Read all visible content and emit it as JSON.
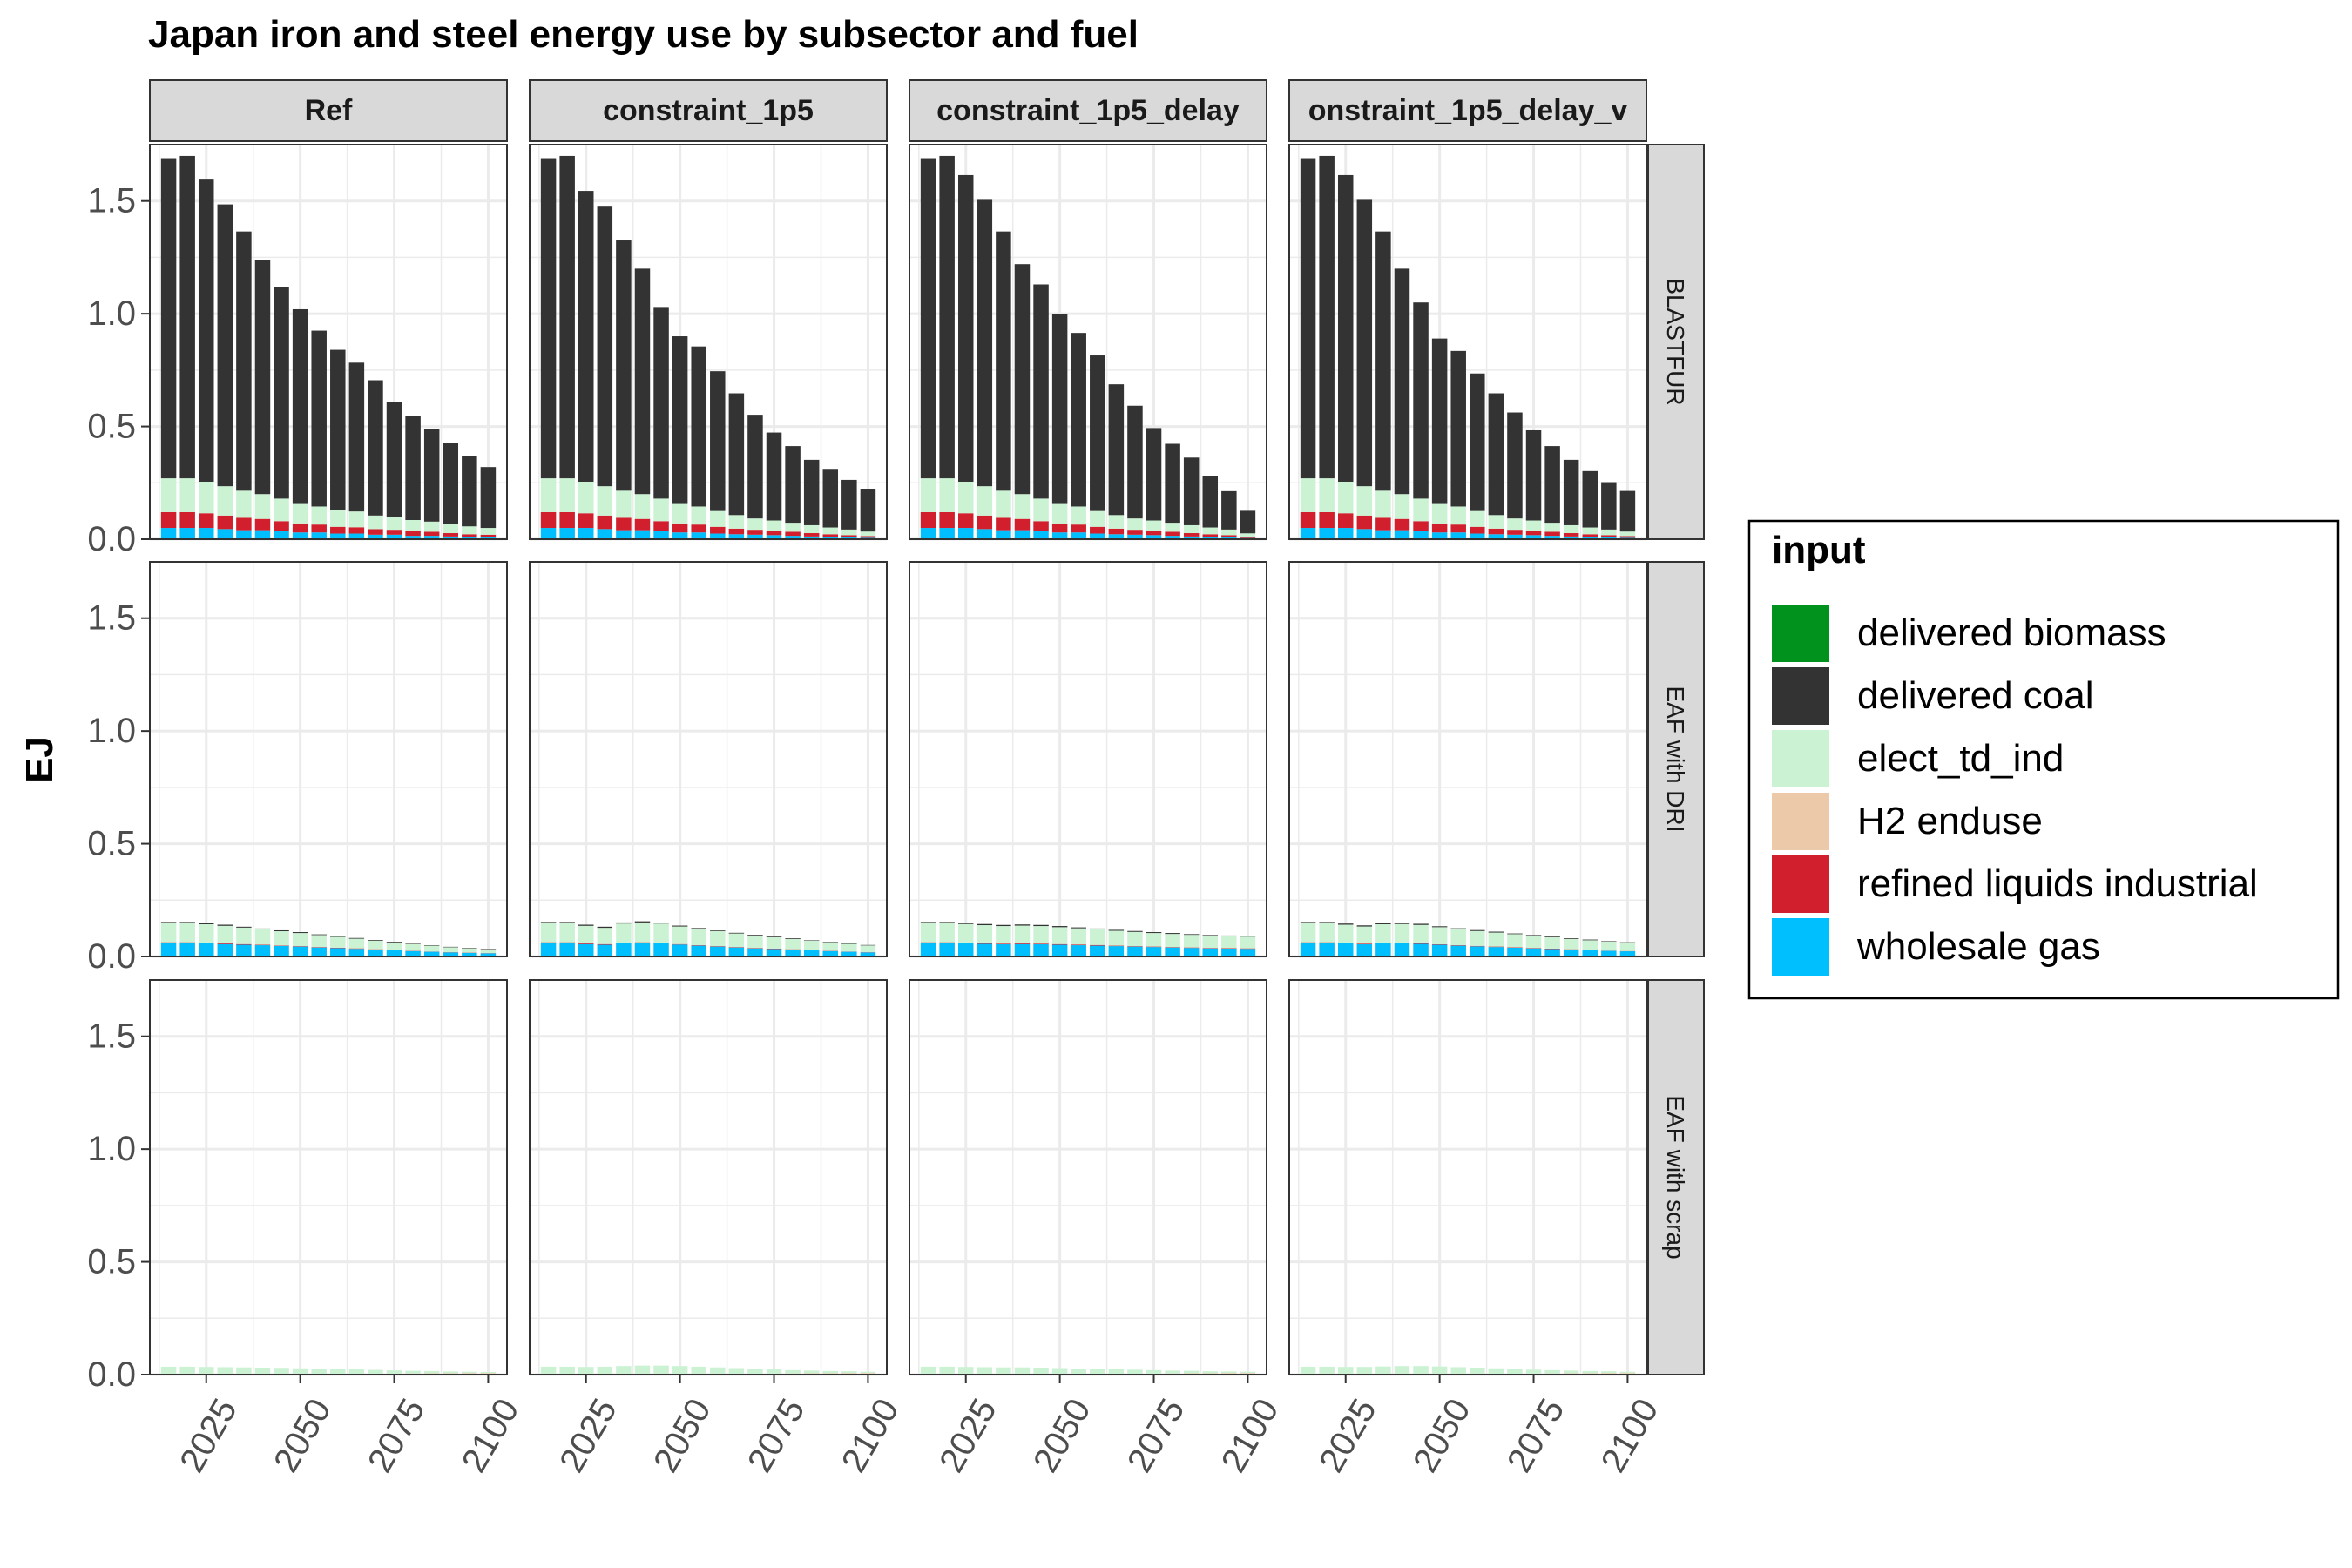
{
  "chart_data": {
    "type": "bar",
    "stacked": true,
    "title": "Japan iron and steel energy use by subsector and fuel",
    "ylabel": "EJ",
    "xlabel": "",
    "ylim": [
      0,
      1.75
    ],
    "y_ticks": [
      "0.0",
      "0.5",
      "1.0",
      "1.5"
    ],
    "x_ticks": [
      "2025",
      "2050",
      "2075",
      "2100"
    ],
    "grid": true,
    "legend_title": "input",
    "legend_position": "right",
    "x": [
      2015,
      2020,
      2025,
      2030,
      2035,
      2040,
      2045,
      2050,
      2055,
      2060,
      2065,
      2070,
      2075,
      2080,
      2085,
      2090,
      2095,
      2100
    ],
    "facet_columns": [
      "Ref",
      "constraint_1p5",
      "constraint_1p5_delay",
      "onstraint_1p5_delay_v"
    ],
    "facet_rows": [
      "BLASTFUR",
      "EAF with DRI",
      "EAF with scrap"
    ],
    "inputs": [
      {
        "name": "delivered biomass",
        "color": "#00921C"
      },
      {
        "name": "delivered coal",
        "color": "#333333"
      },
      {
        "name": "elect_td_ind",
        "color": "#CCF2D4"
      },
      {
        "name": "H2 enduse",
        "color": "#ECC9A9"
      },
      {
        "name": "refined liquids industrial",
        "color": "#D11F2D"
      },
      {
        "name": "wholesale gas",
        "color": "#00BFFF"
      }
    ],
    "stack_order": [
      "wholesale gas",
      "refined liquids industrial",
      "H2 enduse",
      "elect_td_ind",
      "delivered coal",
      "delivered biomass"
    ],
    "panels": [
      {
        "scenario": "Ref",
        "subsector": "BLASTFUR",
        "series": {
          "wholesale gas": [
            0.05,
            0.05,
            0.05,
            0.045,
            0.04,
            0.04,
            0.035,
            0.03,
            0.03,
            0.025,
            0.025,
            0.02,
            0.02,
            0.015,
            0.015,
            0.012,
            0.01,
            0.01
          ],
          "refined liquids industrial": [
            0.07,
            0.07,
            0.065,
            0.06,
            0.055,
            0.05,
            0.045,
            0.04,
            0.035,
            0.03,
            0.028,
            0.025,
            0.022,
            0.02,
            0.018,
            0.015,
            0.012,
            0.01
          ],
          "elect_td_ind": [
            0.15,
            0.15,
            0.14,
            0.13,
            0.12,
            0.11,
            0.1,
            0.09,
            0.08,
            0.075,
            0.07,
            0.06,
            0.055,
            0.05,
            0.045,
            0.04,
            0.035,
            0.03
          ],
          "delivered coal": [
            1.42,
            1.43,
            1.34,
            1.25,
            1.15,
            1.04,
            0.94,
            0.86,
            0.78,
            0.71,
            0.66,
            0.6,
            0.51,
            0.46,
            0.41,
            0.36,
            0.31,
            0.27
          ]
        }
      },
      {
        "scenario": "constraint_1p5",
        "subsector": "BLASTFUR",
        "series": {
          "wholesale gas": [
            0.05,
            0.05,
            0.05,
            0.045,
            0.04,
            0.04,
            0.035,
            0.03,
            0.03,
            0.025,
            0.022,
            0.02,
            0.018,
            0.015,
            0.012,
            0.01,
            0.008,
            0.006
          ],
          "refined liquids industrial": [
            0.07,
            0.07,
            0.065,
            0.06,
            0.055,
            0.05,
            0.045,
            0.04,
            0.035,
            0.03,
            0.025,
            0.022,
            0.02,
            0.018,
            0.015,
            0.012,
            0.01,
            0.008
          ],
          "elect_td_ind": [
            0.15,
            0.15,
            0.14,
            0.13,
            0.12,
            0.11,
            0.1,
            0.09,
            0.08,
            0.07,
            0.06,
            0.05,
            0.045,
            0.04,
            0.035,
            0.03,
            0.025,
            0.02
          ],
          "delivered coal": [
            1.42,
            1.43,
            1.29,
            1.24,
            1.11,
            1.0,
            0.85,
            0.74,
            0.71,
            0.62,
            0.54,
            0.46,
            0.39,
            0.34,
            0.29,
            0.26,
            0.22,
            0.19
          ]
        }
      },
      {
        "scenario": "constraint_1p5_delay",
        "subsector": "BLASTFUR",
        "series": {
          "wholesale gas": [
            0.05,
            0.05,
            0.05,
            0.045,
            0.04,
            0.04,
            0.035,
            0.03,
            0.03,
            0.025,
            0.022,
            0.02,
            0.018,
            0.015,
            0.012,
            0.01,
            0.008,
            0.005
          ],
          "refined liquids industrial": [
            0.07,
            0.07,
            0.065,
            0.06,
            0.055,
            0.05,
            0.045,
            0.04,
            0.035,
            0.03,
            0.025,
            0.022,
            0.02,
            0.018,
            0.015,
            0.012,
            0.01,
            0.006
          ],
          "elect_td_ind": [
            0.15,
            0.15,
            0.14,
            0.13,
            0.12,
            0.11,
            0.1,
            0.09,
            0.08,
            0.07,
            0.06,
            0.05,
            0.045,
            0.04,
            0.035,
            0.03,
            0.025,
            0.015
          ],
          "delivered coal": [
            1.42,
            1.43,
            1.36,
            1.27,
            1.15,
            1.02,
            0.95,
            0.84,
            0.77,
            0.69,
            0.58,
            0.5,
            0.41,
            0.35,
            0.3,
            0.23,
            0.17,
            0.1
          ]
        }
      },
      {
        "scenario": "onstraint_1p5_delay_v",
        "subsector": "BLASTFUR",
        "series": {
          "wholesale gas": [
            0.05,
            0.05,
            0.05,
            0.045,
            0.04,
            0.04,
            0.035,
            0.03,
            0.03,
            0.025,
            0.022,
            0.02,
            0.018,
            0.015,
            0.012,
            0.01,
            0.008,
            0.006
          ],
          "refined liquids industrial": [
            0.07,
            0.07,
            0.065,
            0.06,
            0.055,
            0.05,
            0.045,
            0.04,
            0.035,
            0.03,
            0.025,
            0.022,
            0.02,
            0.018,
            0.015,
            0.012,
            0.01,
            0.008
          ],
          "elect_td_ind": [
            0.15,
            0.15,
            0.14,
            0.13,
            0.12,
            0.11,
            0.1,
            0.09,
            0.08,
            0.07,
            0.06,
            0.05,
            0.045,
            0.04,
            0.035,
            0.03,
            0.025,
            0.02
          ],
          "delivered coal": [
            1.42,
            1.43,
            1.36,
            1.27,
            1.15,
            1.0,
            0.87,
            0.73,
            0.69,
            0.61,
            0.54,
            0.47,
            0.4,
            0.34,
            0.29,
            0.25,
            0.21,
            0.18
          ]
        }
      },
      {
        "scenario": "Ref",
        "subsector": "EAF with DRI",
        "series": {
          "wholesale gas": [
            0.06,
            0.06,
            0.058,
            0.055,
            0.052,
            0.05,
            0.047,
            0.044,
            0.04,
            0.037,
            0.034,
            0.03,
            0.027,
            0.024,
            0.021,
            0.018,
            0.016,
            0.014
          ],
          "refined liquids industrial": [
            0.003,
            0.003,
            0.003,
            0.003,
            0.003,
            0.002,
            0.002,
            0.002,
            0.002,
            0.002,
            0.002,
            0.002,
            0.001,
            0.001,
            0.001,
            0.001,
            0.001,
            0.001
          ],
          "elect_td_ind": [
            0.085,
            0.085,
            0.082,
            0.078,
            0.073,
            0.068,
            0.063,
            0.058,
            0.053,
            0.048,
            0.043,
            0.038,
            0.034,
            0.03,
            0.026,
            0.022,
            0.019,
            0.016
          ],
          "delivered coal": [
            0.005,
            0.005,
            0.005,
            0.005,
            0.004,
            0.004,
            0.004,
            0.004,
            0.003,
            0.003,
            0.003,
            0.003,
            0.003,
            0.002,
            0.002,
            0.002,
            0.002,
            0.002
          ]
        }
      },
      {
        "scenario": "constraint_1p5",
        "subsector": "EAF with DRI",
        "series": {
          "wholesale gas": [
            0.06,
            0.06,
            0.055,
            0.052,
            0.058,
            0.06,
            0.058,
            0.053,
            0.048,
            0.044,
            0.04,
            0.036,
            0.033,
            0.03,
            0.027,
            0.024,
            0.021,
            0.018
          ],
          "refined liquids industrial": [
            0.003,
            0.003,
            0.003,
            0.003,
            0.003,
            0.003,
            0.003,
            0.002,
            0.002,
            0.002,
            0.002,
            0.002,
            0.002,
            0.002,
            0.001,
            0.001,
            0.001,
            0.001
          ],
          "elect_td_ind": [
            0.085,
            0.085,
            0.078,
            0.072,
            0.085,
            0.088,
            0.085,
            0.078,
            0.072,
            0.066,
            0.06,
            0.055,
            0.05,
            0.046,
            0.042,
            0.038,
            0.034,
            0.03
          ],
          "delivered coal": [
            0.005,
            0.005,
            0.005,
            0.005,
            0.005,
            0.005,
            0.004,
            0.004,
            0.004,
            0.003,
            0.003,
            0.003,
            0.003,
            0.003,
            0.002,
            0.002,
            0.002,
            0.002
          ]
        }
      },
      {
        "scenario": "constraint_1p5_delay",
        "subsector": "EAF with DRI",
        "series": {
          "wholesale gas": [
            0.06,
            0.06,
            0.058,
            0.056,
            0.054,
            0.055,
            0.054,
            0.052,
            0.05,
            0.048,
            0.046,
            0.044,
            0.042,
            0.04,
            0.038,
            0.036,
            0.035,
            0.034
          ],
          "refined liquids industrial": [
            0.003,
            0.003,
            0.003,
            0.003,
            0.003,
            0.003,
            0.003,
            0.003,
            0.003,
            0.003,
            0.002,
            0.002,
            0.002,
            0.002,
            0.002,
            0.002,
            0.002,
            0.002
          ],
          "elect_td_ind": [
            0.085,
            0.085,
            0.083,
            0.08,
            0.078,
            0.079,
            0.078,
            0.075,
            0.072,
            0.069,
            0.066,
            0.063,
            0.06,
            0.058,
            0.056,
            0.054,
            0.053,
            0.052
          ],
          "delivered coal": [
            0.005,
            0.005,
            0.005,
            0.005,
            0.005,
            0.005,
            0.005,
            0.005,
            0.004,
            0.004,
            0.004,
            0.004,
            0.004,
            0.004,
            0.003,
            0.003,
            0.003,
            0.003
          ]
        }
      },
      {
        "scenario": "onstraint_1p5_delay_v",
        "subsector": "EAF with DRI",
        "series": {
          "wholesale gas": [
            0.06,
            0.06,
            0.058,
            0.054,
            0.058,
            0.058,
            0.056,
            0.052,
            0.048,
            0.045,
            0.042,
            0.039,
            0.036,
            0.033,
            0.03,
            0.028,
            0.025,
            0.023
          ],
          "refined liquids industrial": [
            0.003,
            0.003,
            0.003,
            0.003,
            0.003,
            0.003,
            0.003,
            0.002,
            0.002,
            0.002,
            0.002,
            0.002,
            0.002,
            0.002,
            0.002,
            0.001,
            0.001,
            0.001
          ],
          "elect_td_ind": [
            0.085,
            0.085,
            0.08,
            0.076,
            0.082,
            0.083,
            0.081,
            0.076,
            0.071,
            0.066,
            0.062,
            0.058,
            0.054,
            0.05,
            0.046,
            0.043,
            0.04,
            0.037
          ],
          "delivered coal": [
            0.005,
            0.005,
            0.005,
            0.005,
            0.005,
            0.005,
            0.005,
            0.004,
            0.004,
            0.004,
            0.004,
            0.003,
            0.003,
            0.003,
            0.003,
            0.003,
            0.002,
            0.002
          ]
        }
      },
      {
        "scenario": "Ref",
        "subsector": "EAF with scrap",
        "series": {
          "H2 enduse": [
            0.0,
            0.0,
            0.0,
            0.0,
            0.0,
            0.0,
            0.0,
            0.0,
            0.0,
            0.001,
            0.002,
            0.003,
            0.004,
            0.005,
            0.006,
            0.006,
            0.007,
            0.007
          ],
          "elect_td_ind": [
            0.035,
            0.035,
            0.034,
            0.033,
            0.032,
            0.031,
            0.03,
            0.028,
            0.026,
            0.024,
            0.021,
            0.018,
            0.015,
            0.012,
            0.01,
            0.008,
            0.006,
            0.005
          ]
        }
      },
      {
        "scenario": "constraint_1p5",
        "subsector": "EAF with scrap",
        "series": {
          "H2 enduse": [
            0.0,
            0.0,
            0.0,
            0.0,
            0.0,
            0.0,
            0.0,
            0.0,
            0.0,
            0.001,
            0.002,
            0.003,
            0.004,
            0.005,
            0.006,
            0.006,
            0.007,
            0.007
          ],
          "elect_td_ind": [
            0.035,
            0.035,
            0.034,
            0.035,
            0.038,
            0.04,
            0.04,
            0.038,
            0.035,
            0.031,
            0.027,
            0.023,
            0.019,
            0.015,
            0.012,
            0.01,
            0.008,
            0.006
          ]
        }
      },
      {
        "scenario": "constraint_1p5_delay",
        "subsector": "EAF with scrap",
        "series": {
          "H2 enduse": [
            0.0,
            0.0,
            0.0,
            0.0,
            0.0,
            0.0,
            0.0,
            0.0,
            0.0,
            0.001,
            0.002,
            0.003,
            0.004,
            0.005,
            0.006,
            0.006,
            0.007,
            0.007
          ],
          "elect_td_ind": [
            0.035,
            0.035,
            0.034,
            0.033,
            0.032,
            0.032,
            0.031,
            0.029,
            0.027,
            0.025,
            0.022,
            0.019,
            0.016,
            0.013,
            0.011,
            0.009,
            0.007,
            0.006
          ]
        }
      },
      {
        "scenario": "onstraint_1p5_delay_v",
        "subsector": "EAF with scrap",
        "series": {
          "H2 enduse": [
            0.0,
            0.0,
            0.0,
            0.0,
            0.0,
            0.0,
            0.0,
            0.0,
            0.0,
            0.001,
            0.002,
            0.003,
            0.004,
            0.005,
            0.006,
            0.006,
            0.007,
            0.007
          ],
          "elect_td_ind": [
            0.035,
            0.035,
            0.034,
            0.034,
            0.036,
            0.038,
            0.038,
            0.036,
            0.033,
            0.03,
            0.026,
            0.022,
            0.018,
            0.015,
            0.012,
            0.01,
            0.008,
            0.006
          ]
        }
      }
    ]
  }
}
